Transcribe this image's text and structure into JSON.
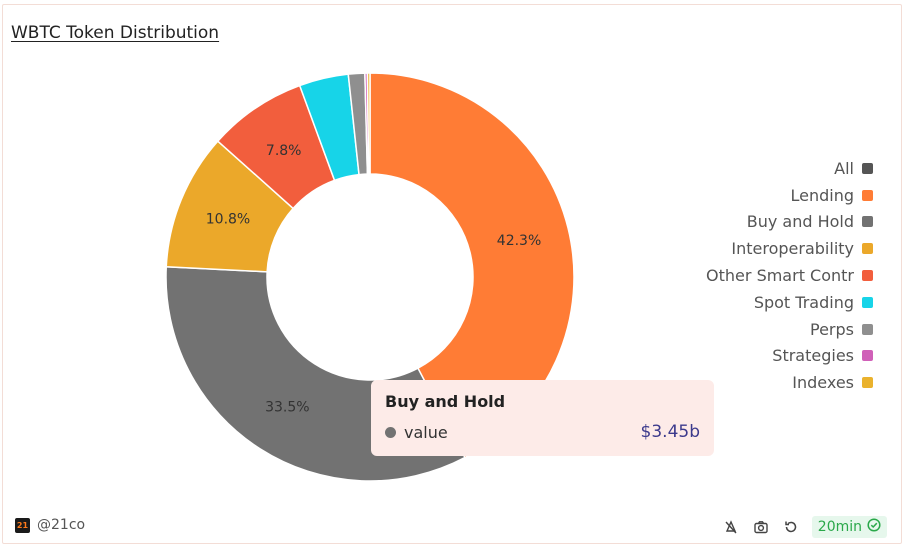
{
  "title": "WBTC Token Distribution",
  "chart_data": {
    "type": "pie",
    "donut": true,
    "categories": [
      "Lending",
      "Buy and Hold",
      "Interoperability",
      "Other Smart Contr",
      "Spot Trading",
      "Perps",
      "Strategies",
      "Indexes"
    ],
    "values": [
      42.3,
      33.5,
      10.8,
      7.8,
      3.9,
      1.3,
      0.2,
      0.2
    ],
    "labels": [
      "42.3%",
      "33.5%",
      "10.8%",
      "7.8%",
      "",
      "",
      "",
      ""
    ],
    "colors": [
      "#ff7c35",
      "#727272",
      "#eba82a",
      "#f25e3d",
      "#17d4e8",
      "#8f8f8f",
      "#d060b8",
      "#eab22d"
    ],
    "legend_position": "right"
  },
  "legend": [
    {
      "label": "All",
      "color": "#555555"
    },
    {
      "label": "Lending",
      "color": "#ff7c35"
    },
    {
      "label": "Buy and Hold",
      "color": "#727272"
    },
    {
      "label": "Interoperability",
      "color": "#eba82a"
    },
    {
      "label": "Other Smart Contr",
      "color": "#f25e3d"
    },
    {
      "label": "Spot Trading",
      "color": "#17d4e8"
    },
    {
      "label": "Perps",
      "color": "#8f8f8f"
    },
    {
      "label": "Strategies",
      "color": "#d060b8"
    },
    {
      "label": "Indexes",
      "color": "#eab22d"
    }
  ],
  "tooltip": {
    "title": "Buy and Hold",
    "series_label": "value",
    "value": "$3.45b",
    "dot_color": "#727272"
  },
  "footer": {
    "logo_text": "21",
    "handle": "@21co",
    "refresh_label": "20min",
    "icons": [
      "alert-icon",
      "camera-icon",
      "refresh-icon",
      "check-circle-icon"
    ]
  }
}
